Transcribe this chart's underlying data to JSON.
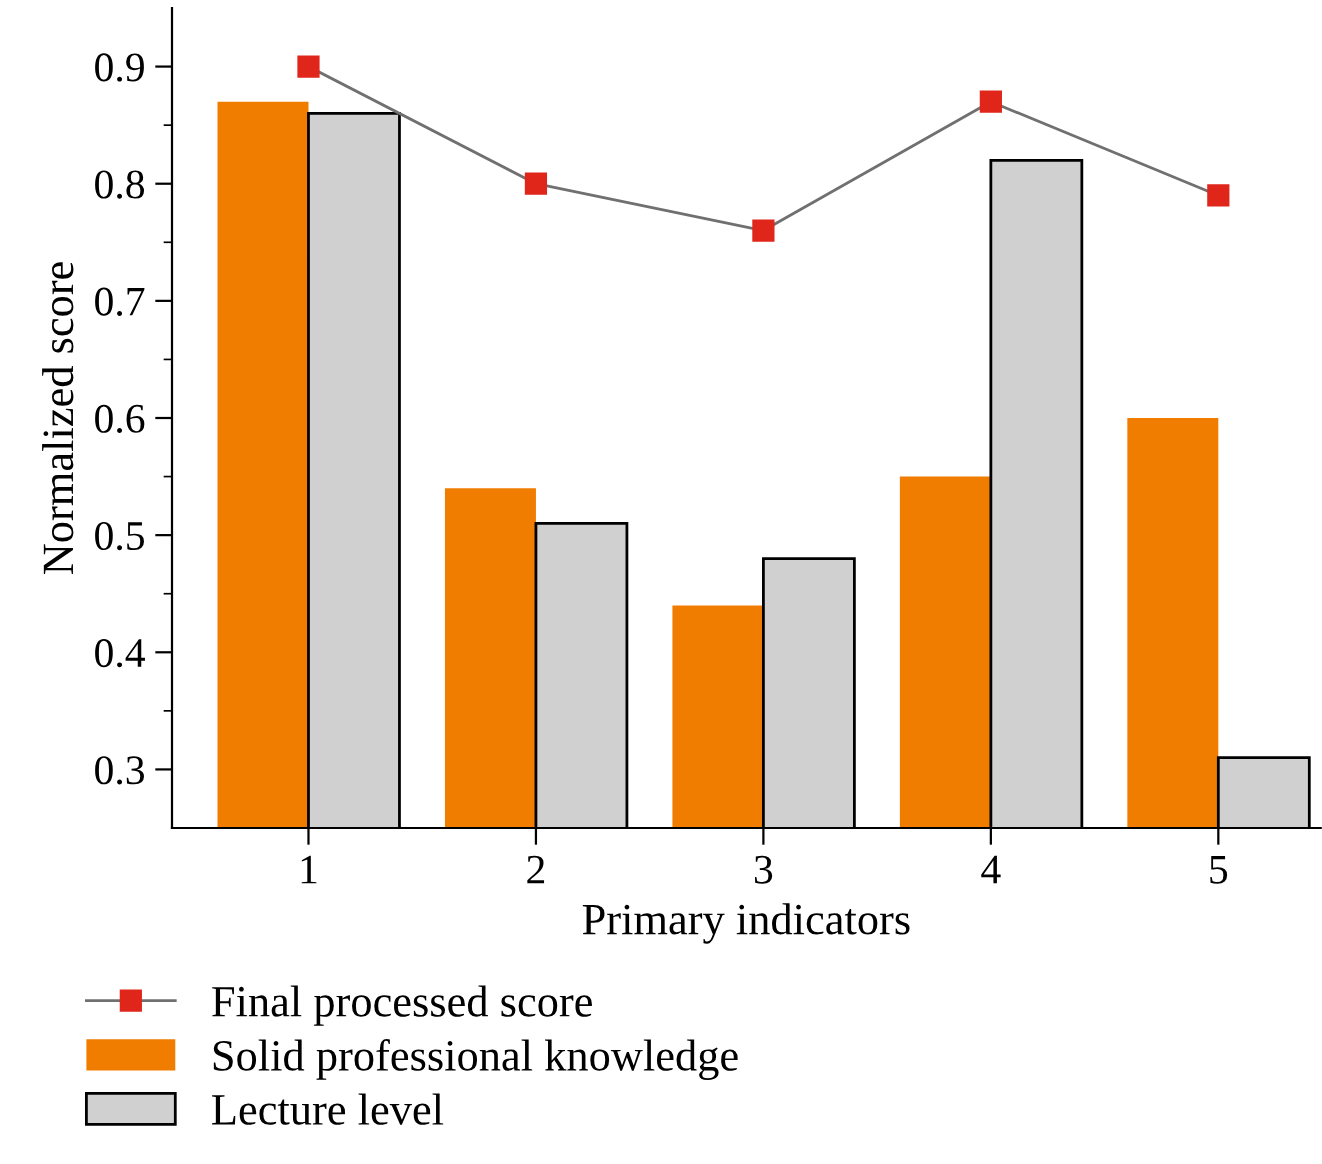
{
  "chart_data": {
    "type": "bar",
    "xlabel": "Primary indicators",
    "ylabel": "Normalized score",
    "categories": [
      "1",
      "2",
      "3",
      "4",
      "5"
    ],
    "series": [
      {
        "name": "Final processed score",
        "type": "line",
        "color": "#e0261b",
        "marker": "square",
        "values": [
          0.9,
          0.8,
          0.76,
          0.87,
          0.79
        ]
      },
      {
        "name": "Solid professional knowledge",
        "color": "#f07c00",
        "values": [
          0.87,
          0.54,
          0.44,
          0.55,
          0.6
        ]
      },
      {
        "name": "Lecture level",
        "color": "#d0d0d0",
        "values": [
          0.86,
          0.51,
          0.48,
          0.82,
          0.31
        ]
      }
    ],
    "ylim": [
      0.25,
      0.95
    ],
    "yticks": [
      0.3,
      0.4,
      0.5,
      0.6,
      0.7,
      0.8,
      0.9
    ],
    "grid": false,
    "legend": "bottom left"
  }
}
